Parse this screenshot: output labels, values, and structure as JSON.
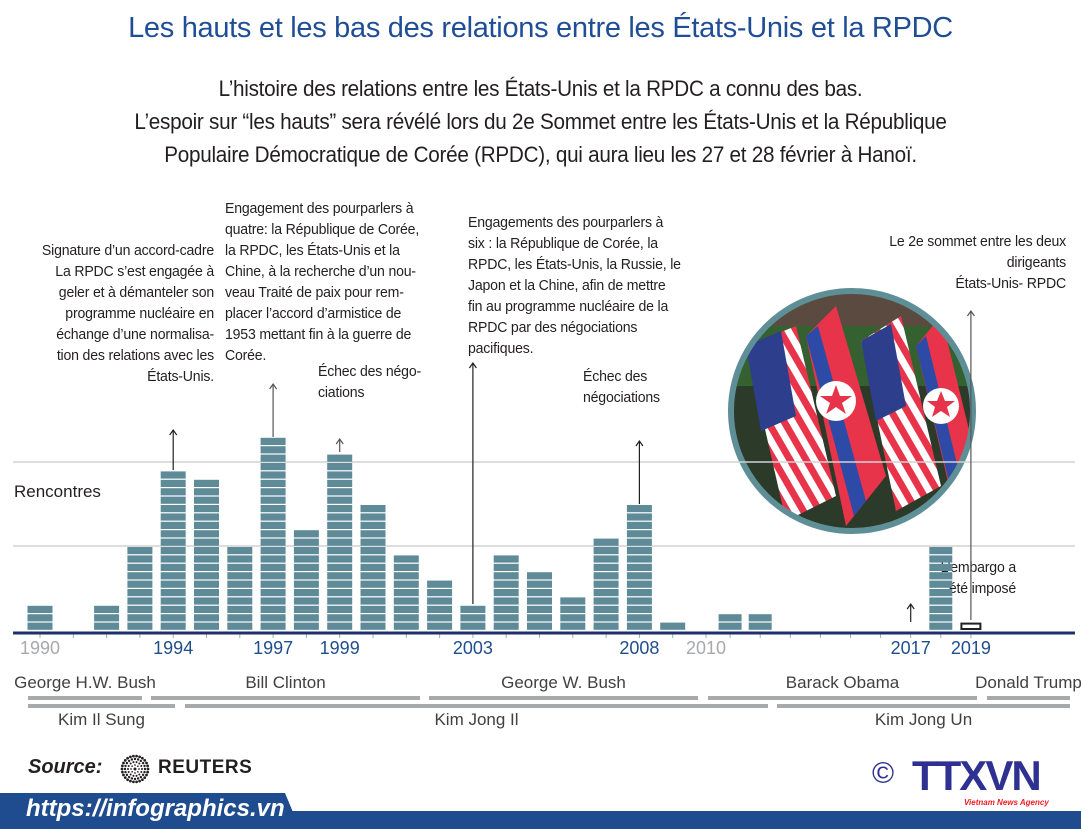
{
  "header": {
    "title": "Les hauts et les bas des relations entre les États-Unis et la RPDC",
    "subtitle_lines": [
      "L’histoire des relations entre les États-Unis et la RPDC a connu des bas.",
      "L’espoir sur “les hauts” sera révélé lors du 2e Sommet entre les États-Unis et la République",
      "Populaire Démocratique de Corée (RPDC), qui aura lieu les 27 et 28 février à Hanoï."
    ]
  },
  "annotations": {
    "a1994": [
      "Signature d’un accord-cadre",
      "La RPDC s’est engagée à",
      "geler et à démanteler son",
      "programme nucléaire en",
      "échange d’une normalisa-",
      "tion des relations avec les",
      "États-Unis."
    ],
    "a1997": [
      "Engagement des pourparlers à",
      "quatre: la République de Corée,",
      "la RPDC, les États-Unis et la",
      "Chine, à la recherche d’un nou-",
      "veau Traité de paix pour rem-",
      "placer l’accord d’armistice de",
      "1953 mettant fin à la guerre de",
      "Corée."
    ],
    "a1999": [
      "Échec des négo-",
      "ciations"
    ],
    "a2003": [
      "Engagements des pourparlers à",
      "six : la République de Corée, la",
      "RPDC, les États-Unis, la Russie, le",
      "Japon et la Chine, afin de mettre",
      "fin au programme nucléaire de la",
      "RPDC par des négociations",
      "pacifiques."
    ],
    "a2008": [
      "Échec des",
      "négociations"
    ],
    "a2017": [
      "L’embargo a",
      "été imposé"
    ],
    "a2019": [
      "Le 2e sommet entre les deux",
      "dirigeants",
      "États-Unis- RPDC"
    ]
  },
  "chart_data": {
    "type": "bar",
    "title": "Les hauts et les bas des relations entre les États-Unis et la RPDC",
    "ylabel": "Rencontres",
    "xlabel": "",
    "grid": true,
    "x": [
      1990,
      1991,
      1992,
      1993,
      1994,
      1995,
      1996,
      1997,
      1998,
      1999,
      2000,
      2001,
      2002,
      2003,
      2004,
      2005,
      2006,
      2007,
      2008,
      2009,
      2010,
      2011,
      2012,
      2013,
      2014,
      2015,
      2016,
      2017,
      2018,
      2019
    ],
    "values": [
      3,
      0,
      3,
      10,
      19,
      18,
      10,
      23,
      12,
      21,
      15,
      9,
      6,
      3,
      9,
      7,
      4,
      11,
      15,
      1,
      0,
      2,
      2,
      0,
      0,
      0,
      0,
      0,
      10,
      1
    ],
    "pending_years": [
      2019
    ],
    "gridlines": [
      10,
      20
    ],
    "tick_labels": [
      {
        "year": 1990,
        "label": "1990",
        "color": "#a7a9ac"
      },
      {
        "year": 1994,
        "label": "1994",
        "color": "#1f4e8c"
      },
      {
        "year": 1997,
        "label": "1997",
        "color": "#1f4e8c"
      },
      {
        "year": 1999,
        "label": "1999",
        "color": "#1f4e8c"
      },
      {
        "year": 2003,
        "label": "2003",
        "color": "#1f4e8c"
      },
      {
        "year": 2008,
        "label": "2008",
        "color": "#1f4e8c"
      },
      {
        "year": 2010,
        "label": "2010",
        "color": "#a7a9ac"
      },
      {
        "year": 2017,
        "label": "2017",
        "color": "#1f4e8c"
      },
      {
        "year": 2019,
        "label": "2019",
        "color": "#1f4e8c"
      }
    ],
    "bar_color": "#5f8b99",
    "axis_color": "#1f2f6e"
  },
  "presidents": [
    {
      "name": "George H.W. Bush",
      "from": 1990,
      "to": 1992
    },
    {
      "name": "Bill Clinton",
      "from": 1993,
      "to": 2000
    },
    {
      "name": "George W. Bush",
      "from": 2001,
      "to": 2008
    },
    {
      "name": "Barack Obama",
      "from": 2009,
      "to": 2016
    },
    {
      "name": "Donald Trump",
      "from": 2017,
      "to": 2019
    }
  ],
  "leaders": [
    {
      "name": "Kim Il Sung",
      "from": 1990,
      "to": 1994
    },
    {
      "name": "Kim Jong Il",
      "from": 1994,
      "to": 2011
    },
    {
      "name": "Kim Jong Un",
      "from": 2011,
      "to": 2019
    }
  ],
  "footer": {
    "source_label": "Source:",
    "source_name": "REUTERS",
    "url": "https://infographics.vn",
    "copyright": "©",
    "agency_logo": "TTXVN",
    "agency_tagline": "Vietnam News Agency"
  },
  "colors": {
    "title": "#1f4e96",
    "band": "#1f4b8f",
    "logo_blue": "#2e3192",
    "logo_red": "#ed1c24"
  }
}
